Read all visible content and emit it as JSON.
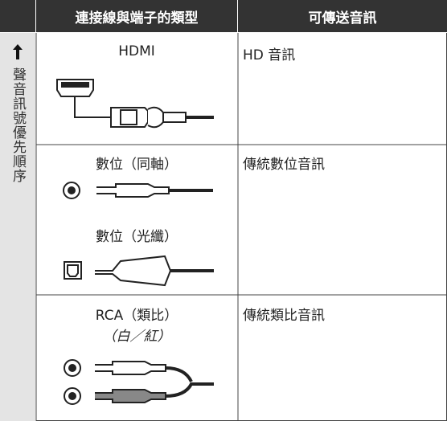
{
  "table": {
    "headers": [
      "連接線與端子的類型",
      "可傳送音訊"
    ],
    "side_label": "聲音訊號優先順序",
    "rows": [
      {
        "connectors": [
          "HDMI"
        ],
        "audio": "HD 音訊"
      },
      {
        "connectors": [
          "數位（同軸）",
          "數位（光纖）"
        ],
        "audio": "傳統數位音訊"
      },
      {
        "connectors": [
          "RCA（類比）"
        ],
        "note": "（白／紅）",
        "audio": "傳統類比音訊"
      }
    ]
  }
}
